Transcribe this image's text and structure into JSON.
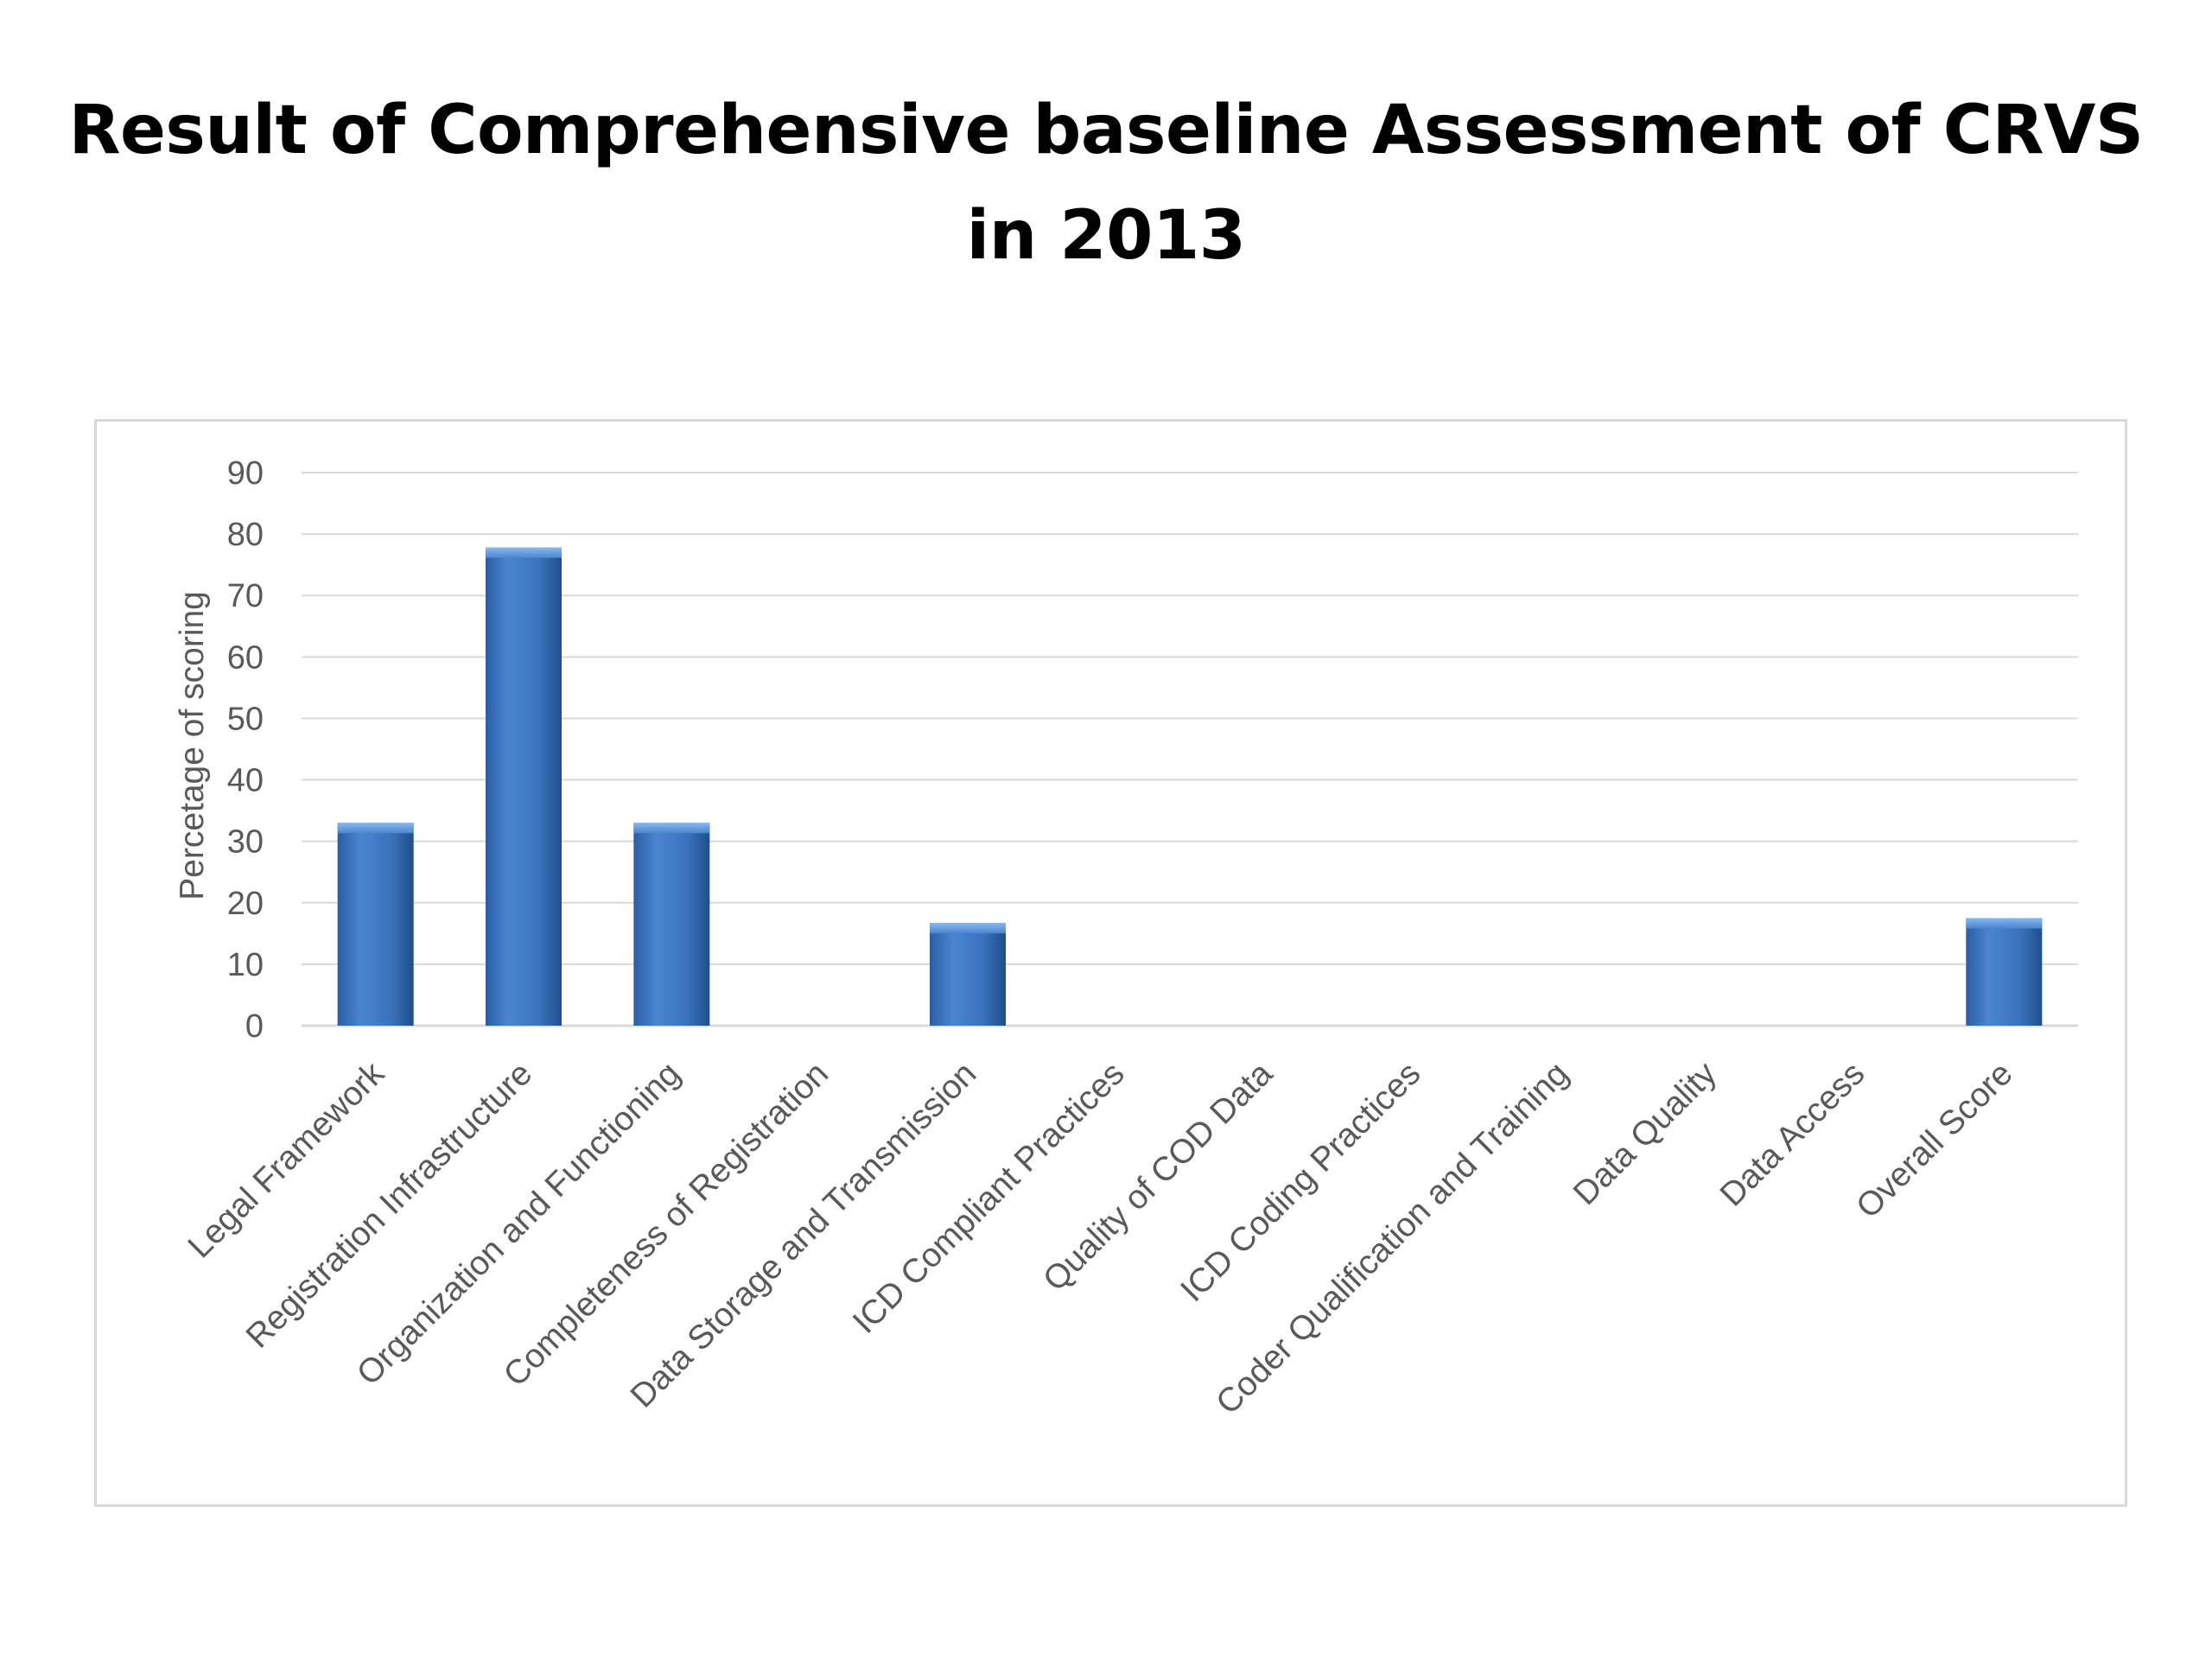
{
  "slide": {
    "title_line1": "Result of Comprehensive baseline Assessment of CRVS",
    "title_line2": "in 2013"
  },
  "chart_data": {
    "type": "bar",
    "categories": [
      "Legal Framework",
      "Registration Infrastructure",
      "Organization and Functioning",
      "Completeness of Registration",
      "Data Storage and Transmission",
      "ICD Compliant Practices",
      "Quality of COD Data",
      "ICD Coding Practices",
      "Coder Qualification and Training",
      "Data Quality",
      "Data Access",
      "Overall Score"
    ],
    "values": [
      33,
      77.8,
      33,
      0,
      16.7,
      0,
      0,
      0,
      0,
      0,
      0,
      17.5
    ],
    "ylabel": "Percetage of scoring",
    "xlabel": "",
    "ylim": [
      0,
      90
    ],
    "yticks": [
      0,
      10,
      20,
      30,
      40,
      50,
      60,
      70,
      80,
      90
    ],
    "grid": true,
    "legend": "none",
    "bar_color": "#3a73bd",
    "bar_color_dark": "#1f4e8c",
    "bar_color_light": "#6fa3e0",
    "grid_color": "#d9d9d9",
    "text_color": "#595959"
  }
}
